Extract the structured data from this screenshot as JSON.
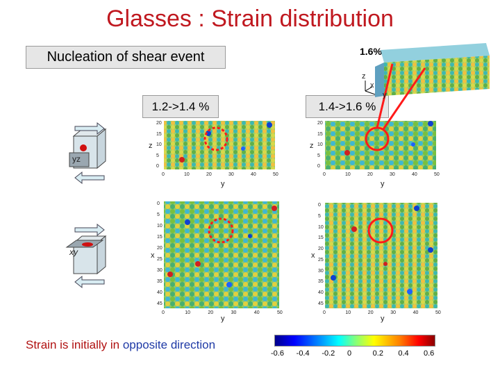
{
  "title": "Glasses : Strain distribution",
  "nucleation_label": "Nucleation of shear event",
  "inset": {
    "strain_label": "1.6%",
    "axes": [
      "z",
      "x",
      "y"
    ]
  },
  "panels": {
    "top_left_label": "1.2->1.4 %",
    "top_right_label": "1.4->1.6 %",
    "yz_axis_labels": {
      "vertical": "z",
      "horizontal": "y"
    },
    "xy_axis_labels": {
      "vertical": "x",
      "horizontal": "y"
    },
    "yz_x_ticks": [
      "0",
      "10",
      "20",
      "30",
      "40",
      "50"
    ],
    "yz_y_ticks": [
      "20",
      "15",
      "10",
      "5",
      "0"
    ],
    "xy_x_ticks": [
      "0",
      "10",
      "20",
      "30",
      "40",
      "50"
    ],
    "xy_y_ticks": [
      "0",
      "5",
      "10",
      "15",
      "20",
      "25",
      "30",
      "35",
      "40",
      "45"
    ]
  },
  "cubes": {
    "yz_label": "yz",
    "xy_label": "xy"
  },
  "bottom_note": {
    "prefix": "Strain is initially in ",
    "highlight": "opposite direction"
  },
  "colorbar": {
    "ticks": [
      "-0.6",
      "-0.4",
      "-0.2",
      "0",
      "0.2",
      "0.4",
      "0.6"
    ]
  },
  "colors": {
    "title": "#c0181f",
    "circle": "#ff1a1a",
    "note_highlight": "#1f3aa6"
  }
}
